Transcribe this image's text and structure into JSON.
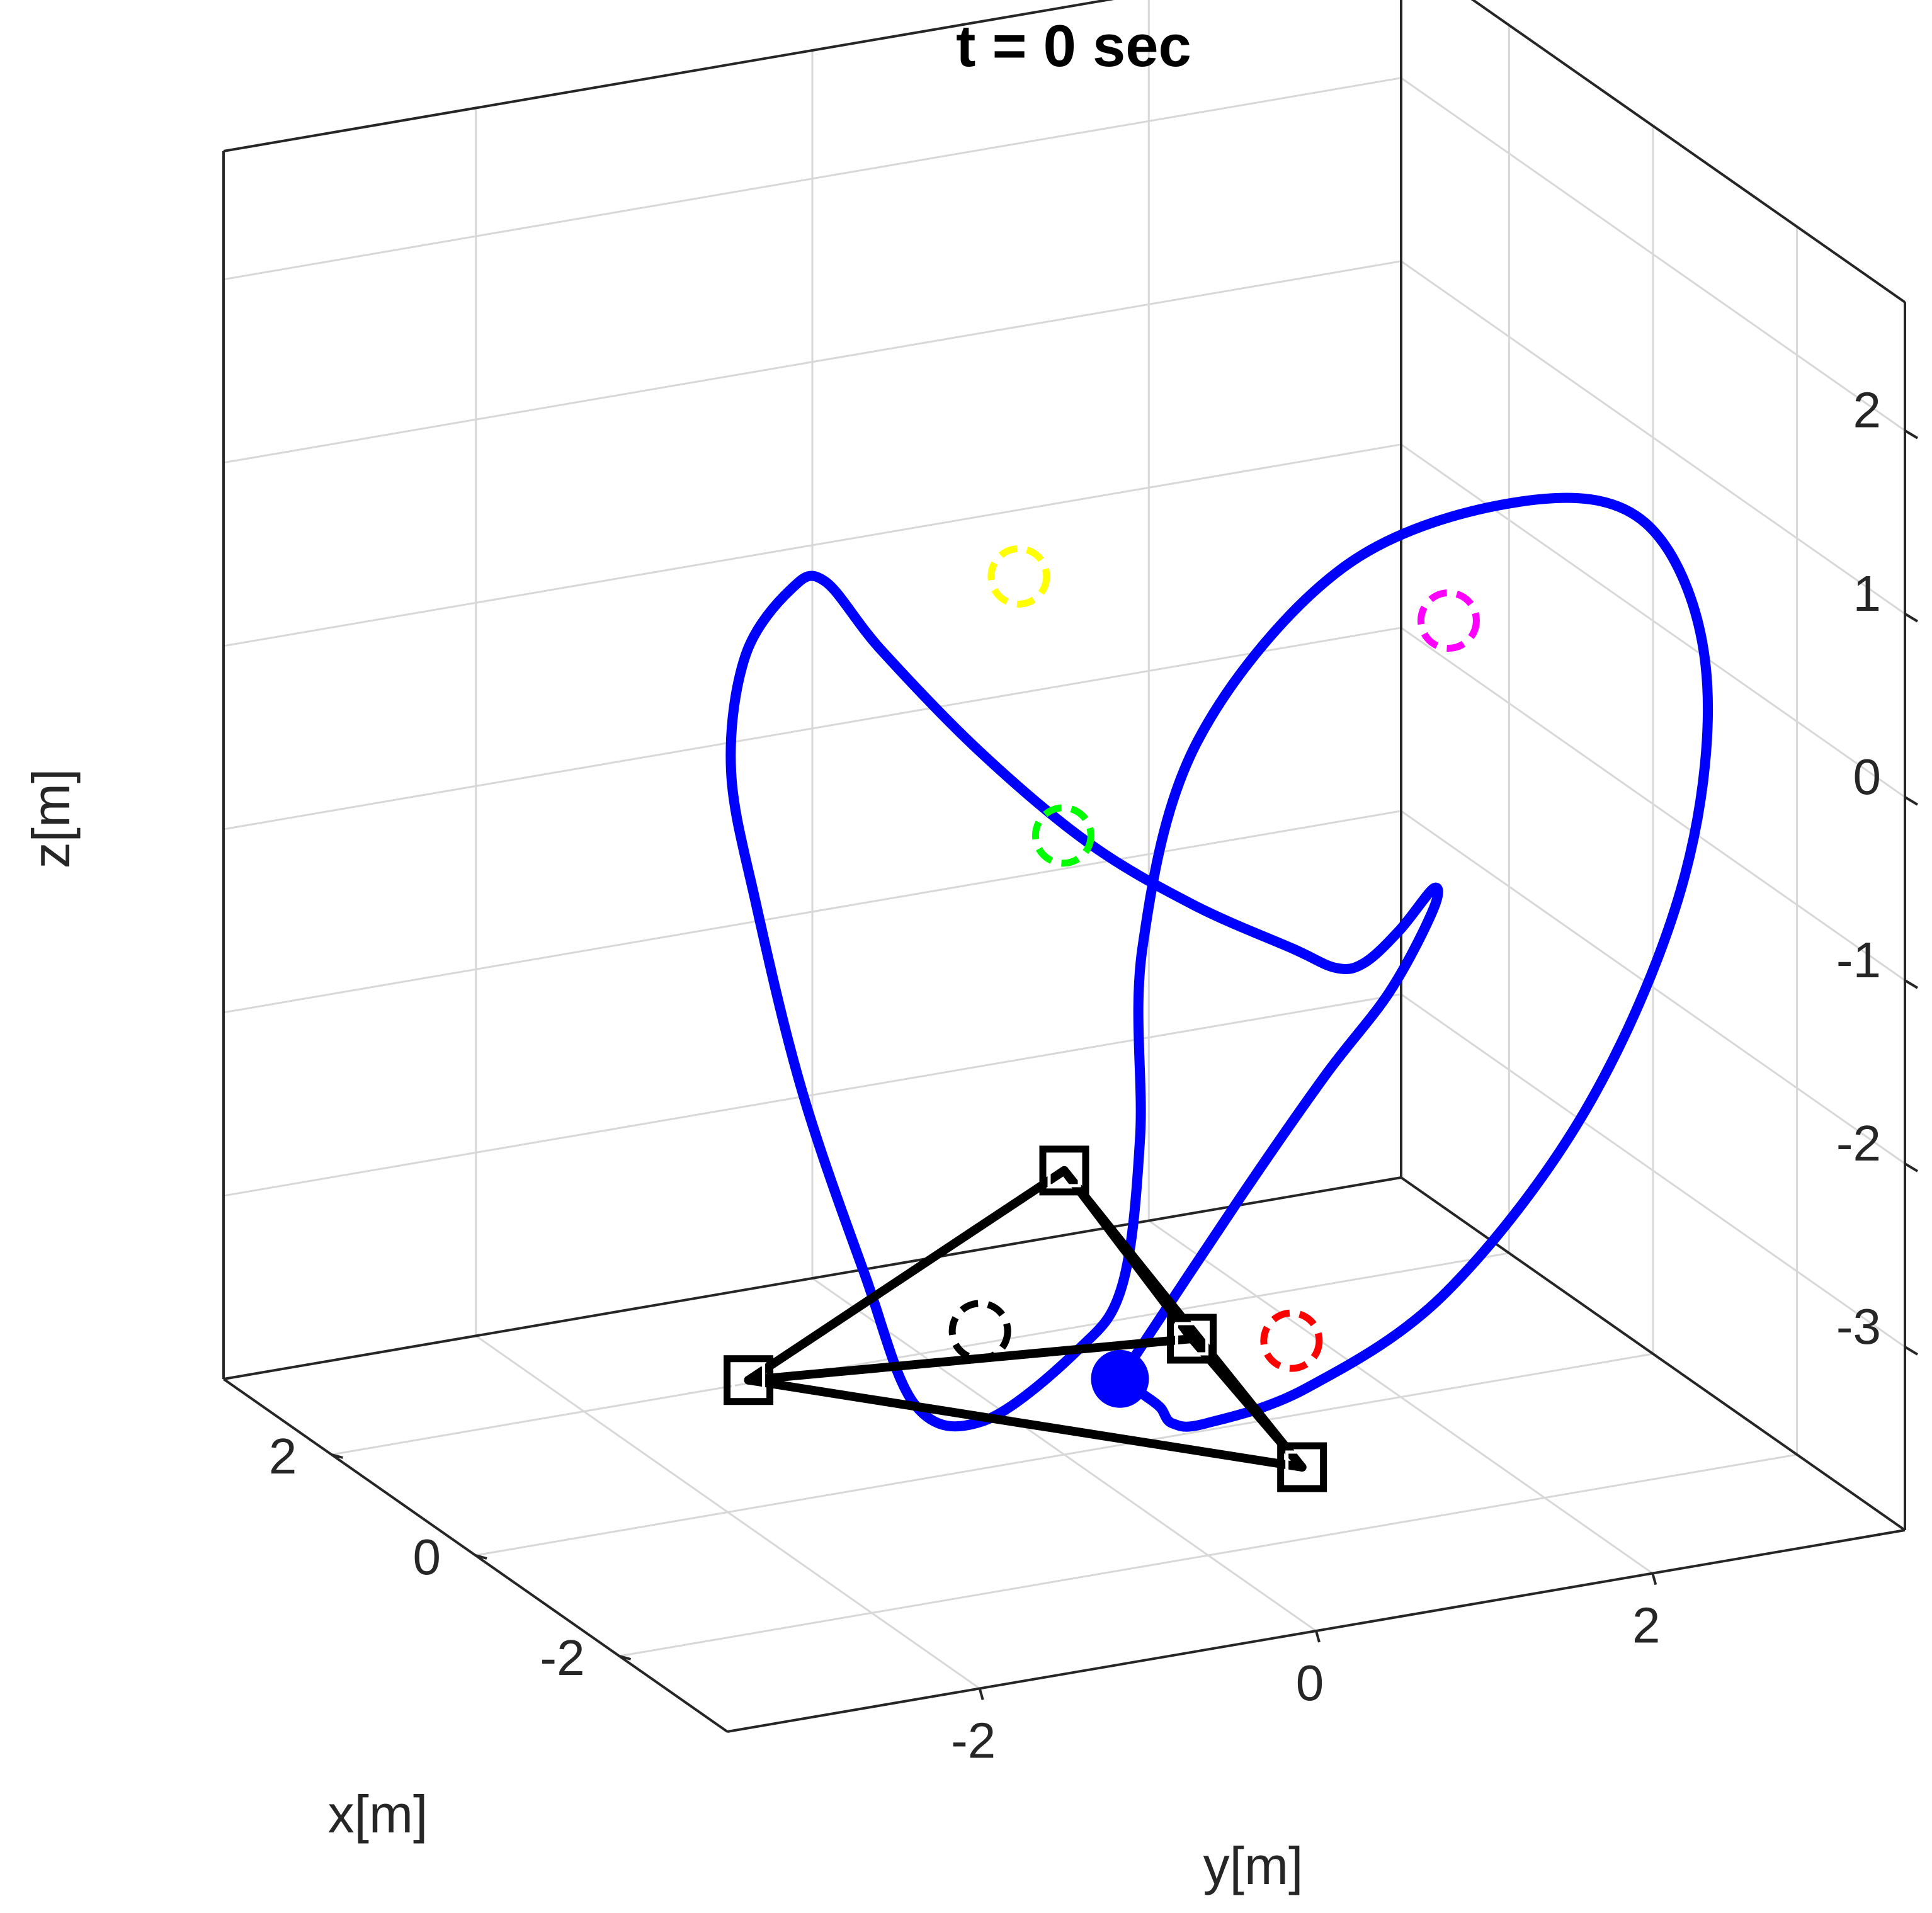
{
  "chart_data": {
    "type": "line",
    "title": "t = 0 sec",
    "xlabel": "x[m]",
    "ylabel": "y[m]",
    "zlabel": "z[m]",
    "grid": true,
    "box": true,
    "view": "3d",
    "xlim": [
      -3.5,
      3.5
    ],
    "ylim": [
      -3.5,
      3.5
    ],
    "zlim": [
      -4,
      2.7
    ],
    "x_ticks": [
      -2,
      0,
      2
    ],
    "y_ticks": [
      -2,
      0,
      2
    ],
    "z_ticks": [
      -3,
      -2,
      -1,
      0,
      1,
      2
    ],
    "series": [
      {
        "kind": "trajectory",
        "color": "#0000ff",
        "points": [
          [
            -0.26,
            0.22,
            -3.55
          ],
          [
            -0.75,
            0.73,
            -2.5
          ],
          [
            -1.1,
            1.08,
            -1.8
          ],
          [
            -1.25,
            1.4,
            -1.35
          ],
          [
            -1.1,
            1.72,
            -1.0
          ],
          [
            -0.6,
            1.94,
            -1.05
          ],
          [
            -0.15,
            1.93,
            -1.4
          ],
          [
            0.1,
            1.83,
            -1.63
          ],
          [
            0.0,
            1.62,
            -1.6
          ],
          [
            -0.3,
            1.23,
            -1.35
          ],
          [
            -0.8,
            0.43,
            -0.85
          ],
          [
            -1.3,
            -0.4,
            -0.25
          ],
          [
            -1.9,
            -1.3,
            0.55
          ],
          [
            -2.6,
            -2.2,
            1.45
          ],
          [
            -3.1,
            -2.75,
            2.05
          ],
          [
            -3.22,
            -3.0,
            2.08
          ],
          [
            -3.05,
            -3.2,
            1.7
          ],
          [
            -2.5,
            -3.05,
            0.9
          ],
          [
            -1.8,
            -2.6,
            -0.1
          ],
          [
            -0.8,
            -1.9,
            -1.5
          ],
          [
            0.2,
            -1.1,
            -2.9
          ],
          [
            0.9,
            -0.5,
            -3.9
          ],
          [
            1.05,
            -0.03,
            -4.1
          ],
          [
            0.75,
            0.4,
            -3.7
          ],
          [
            0.2,
            0.43,
            -3.2
          ],
          [
            -0.4,
            0.28,
            -2.2
          ],
          [
            -0.9,
            0.08,
            -1.0
          ],
          [
            -1.55,
            0.13,
            0.3
          ],
          [
            -2.4,
            0.63,
            1.4
          ],
          [
            -3.0,
            1.43,
            1.8
          ],
          [
            -3.1,
            2.13,
            1.6
          ],
          [
            -2.6,
            2.7,
            0.6
          ],
          [
            -1.8,
            2.92,
            -0.8
          ],
          [
            -0.8,
            2.78,
            -2.3
          ],
          [
            0.1,
            2.32,
            -3.5
          ],
          [
            0.55,
            1.68,
            -4.05
          ],
          [
            0.55,
            1.08,
            -4.15
          ],
          [
            0.2,
            0.73,
            -4.0
          ],
          [
            -0.1,
            0.53,
            -3.8
          ],
          [
            -0.32,
            0.35,
            -3.65
          ],
          [
            -0.26,
            0.22,
            -3.55
          ]
        ]
      }
    ],
    "structure": {
      "color": "#000000",
      "apex": [
        0.0,
        0.0,
        -2.45
      ],
      "base": [
        [
          -0.85,
          1.05,
          -4.0
        ],
        [
          2.05,
          -1.0,
          -4.0
        ],
        [
          1.5,
          1.4,
          -4.0
        ]
      ]
    },
    "current_position": {
      "point": [
        -0.26,
        0.22,
        -3.55
      ],
      "color": "#0000ff"
    },
    "targets": [
      {
        "color": "#ffff00",
        "point": [
          -1.8,
          -1.04,
          1.45
        ]
      },
      {
        "color": "#ff00ff",
        "point": [
          -0.9,
          1.9,
          0.5
        ]
      },
      {
        "color": "#00ff00",
        "point": [
          -0.5,
          -0.22,
          -0.45
        ]
      },
      {
        "color": "#ff0000",
        "point": [
          1.05,
          1.8,
          -3.95
        ]
      },
      {
        "color": "#000000",
        "point": [
          2.2,
          0.44,
          -4.0
        ]
      }
    ]
  }
}
